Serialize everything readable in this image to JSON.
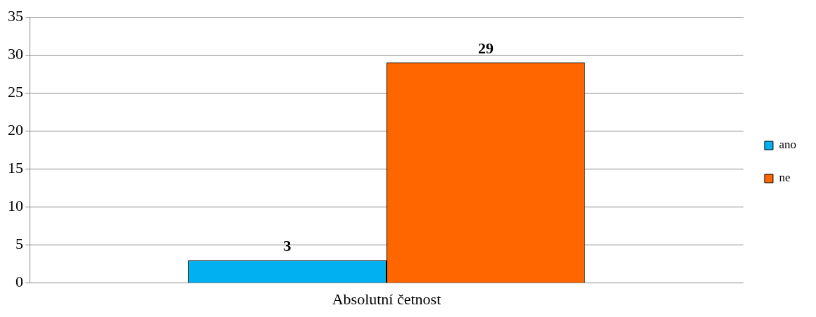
{
  "chart_data": {
    "type": "bar",
    "categories": [
      "Absolutní četnost"
    ],
    "series": [
      {
        "name": "ano",
        "color": "#00b0f0",
        "values": [
          3
        ]
      },
      {
        "name": "ne",
        "color": "#ff6600",
        "values": [
          29
        ]
      }
    ],
    "ylim": [
      0,
      35
    ],
    "yticks": [
      0,
      5,
      10,
      15,
      20,
      25,
      30,
      35
    ],
    "grid": "y",
    "legend": "right",
    "data_labels": true
  }
}
